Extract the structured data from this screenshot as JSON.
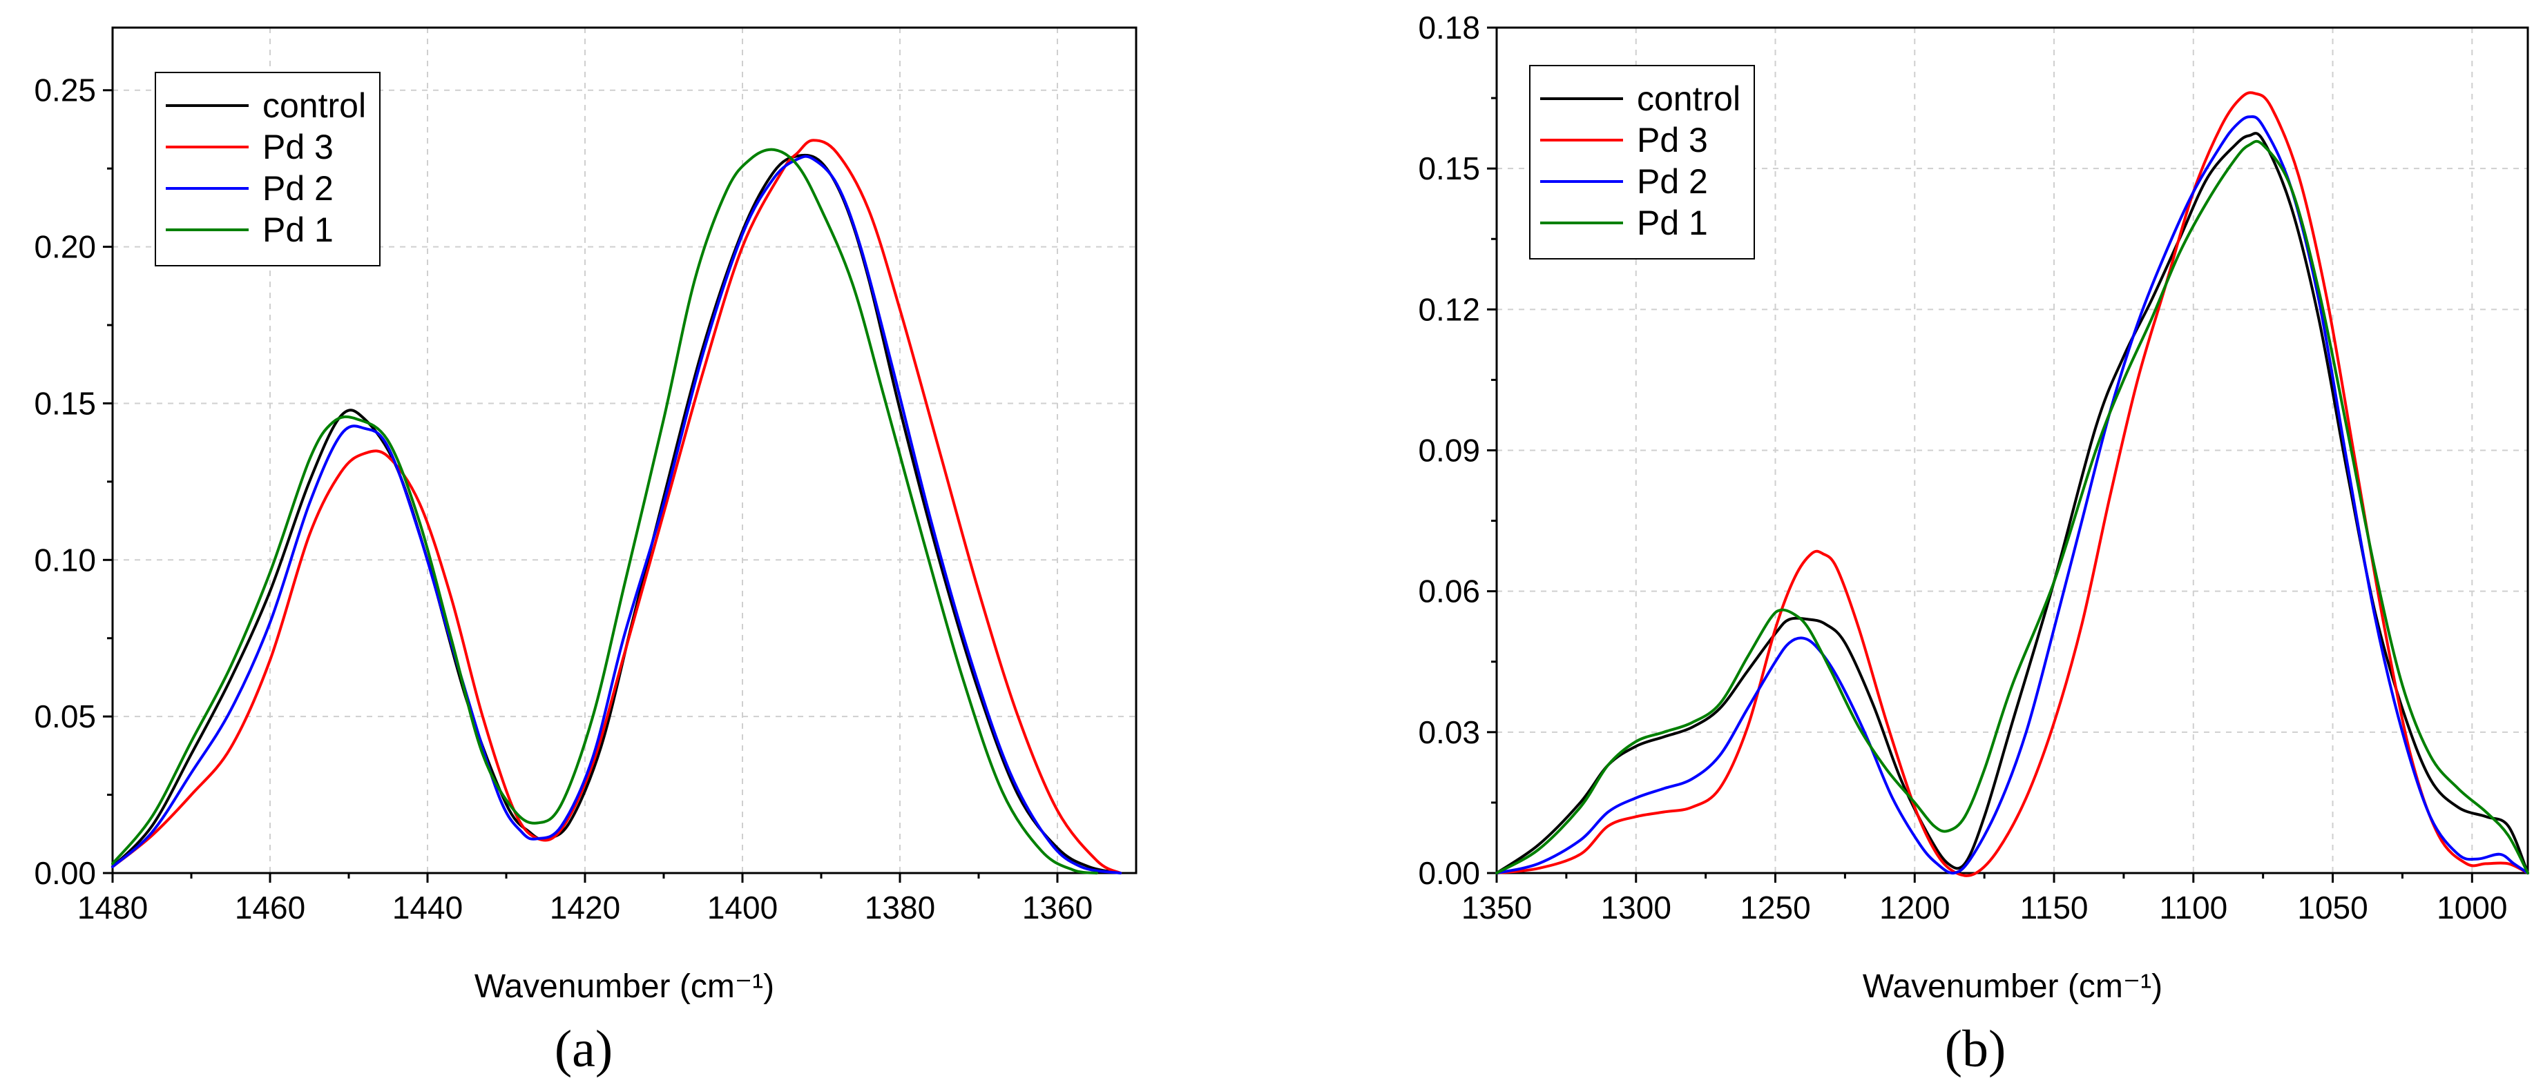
{
  "chart_data": [
    {
      "type": "line",
      "panel_label": "(a)",
      "xlabel": "Wavenumber (cm⁻¹)",
      "ylabel": "",
      "xlim": [
        1480,
        1350
      ],
      "ylim": [
        0,
        0.27
      ],
      "x_ticks": [
        1480,
        1460,
        1440,
        1420,
        1400,
        1380,
        1360
      ],
      "y_ticks": [
        0.0,
        0.05,
        0.1,
        0.15,
        0.2,
        0.25
      ],
      "y_tick_labels": [
        "0.00",
        "0.05",
        "0.10",
        "0.15",
        "0.20",
        "0.25"
      ],
      "grid": true,
      "legend_position": "top-left",
      "series": [
        {
          "name": "control",
          "color": "#000000",
          "x": [
            1480,
            1475,
            1470,
            1465,
            1460,
            1455,
            1451,
            1448,
            1444,
            1440,
            1435,
            1430,
            1427,
            1425,
            1422,
            1418,
            1414,
            1410,
            1405,
            1400,
            1396,
            1393,
            1390,
            1387,
            1384,
            1380,
            1375,
            1370,
            1365,
            1360,
            1356,
            1352
          ],
          "y": [
            0.002,
            0.015,
            0.038,
            0.062,
            0.09,
            0.125,
            0.146,
            0.145,
            0.13,
            0.1,
            0.055,
            0.022,
            0.013,
            0.011,
            0.016,
            0.04,
            0.08,
            0.12,
            0.168,
            0.205,
            0.224,
            0.229,
            0.227,
            0.214,
            0.19,
            0.148,
            0.1,
            0.058,
            0.025,
            0.008,
            0.002,
            0.0
          ]
        },
        {
          "name": "Pd 3",
          "color": "#ff0000",
          "x": [
            1480,
            1475,
            1470,
            1465,
            1460,
            1455,
            1451,
            1448,
            1445,
            1441,
            1437,
            1433,
            1429,
            1426,
            1423,
            1419,
            1415,
            1410,
            1405,
            1400,
            1395,
            1393,
            1391,
            1388,
            1384,
            1380,
            1375,
            1370,
            1365,
            1360,
            1355,
            1352
          ],
          "y": [
            0.002,
            0.012,
            0.025,
            0.04,
            0.068,
            0.108,
            0.128,
            0.134,
            0.133,
            0.118,
            0.088,
            0.05,
            0.02,
            0.011,
            0.014,
            0.035,
            0.07,
            0.115,
            0.16,
            0.2,
            0.224,
            0.23,
            0.234,
            0.23,
            0.212,
            0.18,
            0.135,
            0.09,
            0.05,
            0.02,
            0.004,
            0.0
          ]
        },
        {
          "name": "Pd 2",
          "color": "#0000ff",
          "x": [
            1480,
            1475,
            1470,
            1465,
            1460,
            1455,
            1451,
            1448,
            1445,
            1441,
            1436,
            1431,
            1428,
            1426,
            1423,
            1419,
            1415,
            1410,
            1405,
            1400,
            1396,
            1393,
            1391,
            1388,
            1385,
            1381,
            1376,
            1371,
            1366,
            1361,
            1357,
            1352
          ],
          "y": [
            0.002,
            0.013,
            0.032,
            0.052,
            0.08,
            0.118,
            0.14,
            0.142,
            0.136,
            0.108,
            0.065,
            0.025,
            0.013,
            0.011,
            0.015,
            0.037,
            0.076,
            0.118,
            0.166,
            0.204,
            0.222,
            0.228,
            0.228,
            0.22,
            0.2,
            0.162,
            0.112,
            0.068,
            0.032,
            0.01,
            0.002,
            0.0
          ]
        },
        {
          "name": "Pd 1",
          "color": "#008000",
          "x": [
            1480,
            1475,
            1470,
            1465,
            1460,
            1455,
            1452,
            1449,
            1445,
            1441,
            1437,
            1433,
            1429,
            1426,
            1423,
            1419,
            1415,
            1410,
            1406,
            1402,
            1399,
            1396,
            1393,
            1390,
            1386,
            1382,
            1377,
            1372,
            1367,
            1362,
            1358,
            1355
          ],
          "y": [
            0.003,
            0.018,
            0.042,
            0.066,
            0.096,
            0.132,
            0.144,
            0.145,
            0.138,
            0.112,
            0.075,
            0.038,
            0.02,
            0.016,
            0.022,
            0.05,
            0.092,
            0.145,
            0.19,
            0.218,
            0.228,
            0.231,
            0.226,
            0.212,
            0.188,
            0.152,
            0.106,
            0.062,
            0.026,
            0.007,
            0.001,
            0.0
          ]
        }
      ]
    },
    {
      "type": "line",
      "panel_label": "(b)",
      "xlabel": "Wavenumber (cm⁻¹)",
      "ylabel": "",
      "xlim": [
        1350,
        980
      ],
      "ylim": [
        0,
        0.18
      ],
      "x_ticks": [
        1350,
        1300,
        1250,
        1200,
        1150,
        1100,
        1050,
        1000
      ],
      "y_ticks": [
        0.0,
        0.03,
        0.06,
        0.09,
        0.12,
        0.15,
        0.18
      ],
      "y_tick_labels": [
        "0.00",
        "0.03",
        "0.06",
        "0.09",
        "0.12",
        "0.15",
        "0.18"
      ],
      "grid": true,
      "legend_position": "top-left",
      "series": [
        {
          "name": "control",
          "color": "#000000",
          "x": [
            1350,
            1335,
            1320,
            1310,
            1300,
            1290,
            1280,
            1270,
            1260,
            1250,
            1245,
            1238,
            1232,
            1225,
            1215,
            1205,
            1195,
            1188,
            1182,
            1175,
            1165,
            1150,
            1135,
            1125,
            1115,
            1105,
            1095,
            1085,
            1080,
            1075,
            1065,
            1055,
            1045,
            1035,
            1025,
            1015,
            1005,
            995,
            987,
            980
          ],
          "y": [
            0.0,
            0.006,
            0.015,
            0.023,
            0.027,
            0.029,
            0.031,
            0.035,
            0.043,
            0.051,
            0.054,
            0.054,
            0.053,
            0.049,
            0.036,
            0.02,
            0.008,
            0.002,
            0.002,
            0.012,
            0.032,
            0.062,
            0.095,
            0.11,
            0.122,
            0.135,
            0.148,
            0.155,
            0.157,
            0.156,
            0.142,
            0.118,
            0.086,
            0.056,
            0.035,
            0.02,
            0.014,
            0.012,
            0.01,
            0.0
          ]
        },
        {
          "name": "Pd 3",
          "color": "#ff0000",
          "x": [
            1350,
            1335,
            1320,
            1310,
            1300,
            1290,
            1280,
            1270,
            1260,
            1250,
            1243,
            1237,
            1233,
            1228,
            1220,
            1210,
            1200,
            1192,
            1185,
            1178,
            1170,
            1160,
            1150,
            1140,
            1130,
            1120,
            1110,
            1100,
            1090,
            1083,
            1078,
            1072,
            1062,
            1052,
            1042,
            1032,
            1022,
            1012,
            1002,
            995,
            987,
            980
          ],
          "y": [
            0.0,
            0.001,
            0.004,
            0.01,
            0.012,
            0.013,
            0.014,
            0.018,
            0.031,
            0.052,
            0.063,
            0.068,
            0.068,
            0.065,
            0.052,
            0.032,
            0.014,
            0.004,
            0.0,
            0.0,
            0.005,
            0.016,
            0.032,
            0.053,
            0.08,
            0.105,
            0.125,
            0.145,
            0.159,
            0.165,
            0.166,
            0.163,
            0.148,
            0.122,
            0.088,
            0.054,
            0.025,
            0.008,
            0.002,
            0.002,
            0.002,
            0.0
          ]
        },
        {
          "name": "Pd 2",
          "color": "#0000ff",
          "x": [
            1350,
            1335,
            1320,
            1310,
            1300,
            1290,
            1280,
            1270,
            1260,
            1250,
            1245,
            1240,
            1235,
            1228,
            1218,
            1208,
            1198,
            1192,
            1186,
            1180,
            1170,
            1160,
            1150,
            1140,
            1130,
            1120,
            1110,
            1100,
            1090,
            1085,
            1080,
            1075,
            1065,
            1055,
            1045,
            1035,
            1025,
            1015,
            1005,
            998,
            990,
            985,
            980
          ],
          "y": [
            0.0,
            0.002,
            0.007,
            0.013,
            0.016,
            0.018,
            0.02,
            0.025,
            0.035,
            0.045,
            0.049,
            0.05,
            0.048,
            0.042,
            0.03,
            0.016,
            0.006,
            0.002,
            0.0,
            0.003,
            0.014,
            0.03,
            0.052,
            0.075,
            0.098,
            0.117,
            0.132,
            0.145,
            0.155,
            0.159,
            0.161,
            0.159,
            0.146,
            0.122,
            0.088,
            0.055,
            0.03,
            0.012,
            0.004,
            0.003,
            0.004,
            0.002,
            0.0
          ]
        },
        {
          "name": "Pd 1",
          "color": "#008000",
          "x": [
            1350,
            1335,
            1320,
            1310,
            1300,
            1290,
            1280,
            1270,
            1260,
            1252,
            1248,
            1243,
            1238,
            1230,
            1220,
            1210,
            1200,
            1193,
            1188,
            1182,
            1175,
            1165,
            1150,
            1135,
            1125,
            1115,
            1105,
            1095,
            1085,
            1080,
            1075,
            1065,
            1055,
            1045,
            1035,
            1025,
            1015,
            1005,
            995,
            987,
            980
          ],
          "y": [
            0.0,
            0.005,
            0.014,
            0.023,
            0.028,
            0.03,
            0.032,
            0.036,
            0.046,
            0.054,
            0.056,
            0.055,
            0.052,
            0.043,
            0.031,
            0.022,
            0.015,
            0.01,
            0.009,
            0.012,
            0.022,
            0.04,
            0.062,
            0.09,
            0.105,
            0.118,
            0.132,
            0.143,
            0.152,
            0.155,
            0.155,
            0.146,
            0.124,
            0.095,
            0.065,
            0.04,
            0.025,
            0.018,
            0.013,
            0.008,
            0.0
          ]
        }
      ]
    }
  ]
}
